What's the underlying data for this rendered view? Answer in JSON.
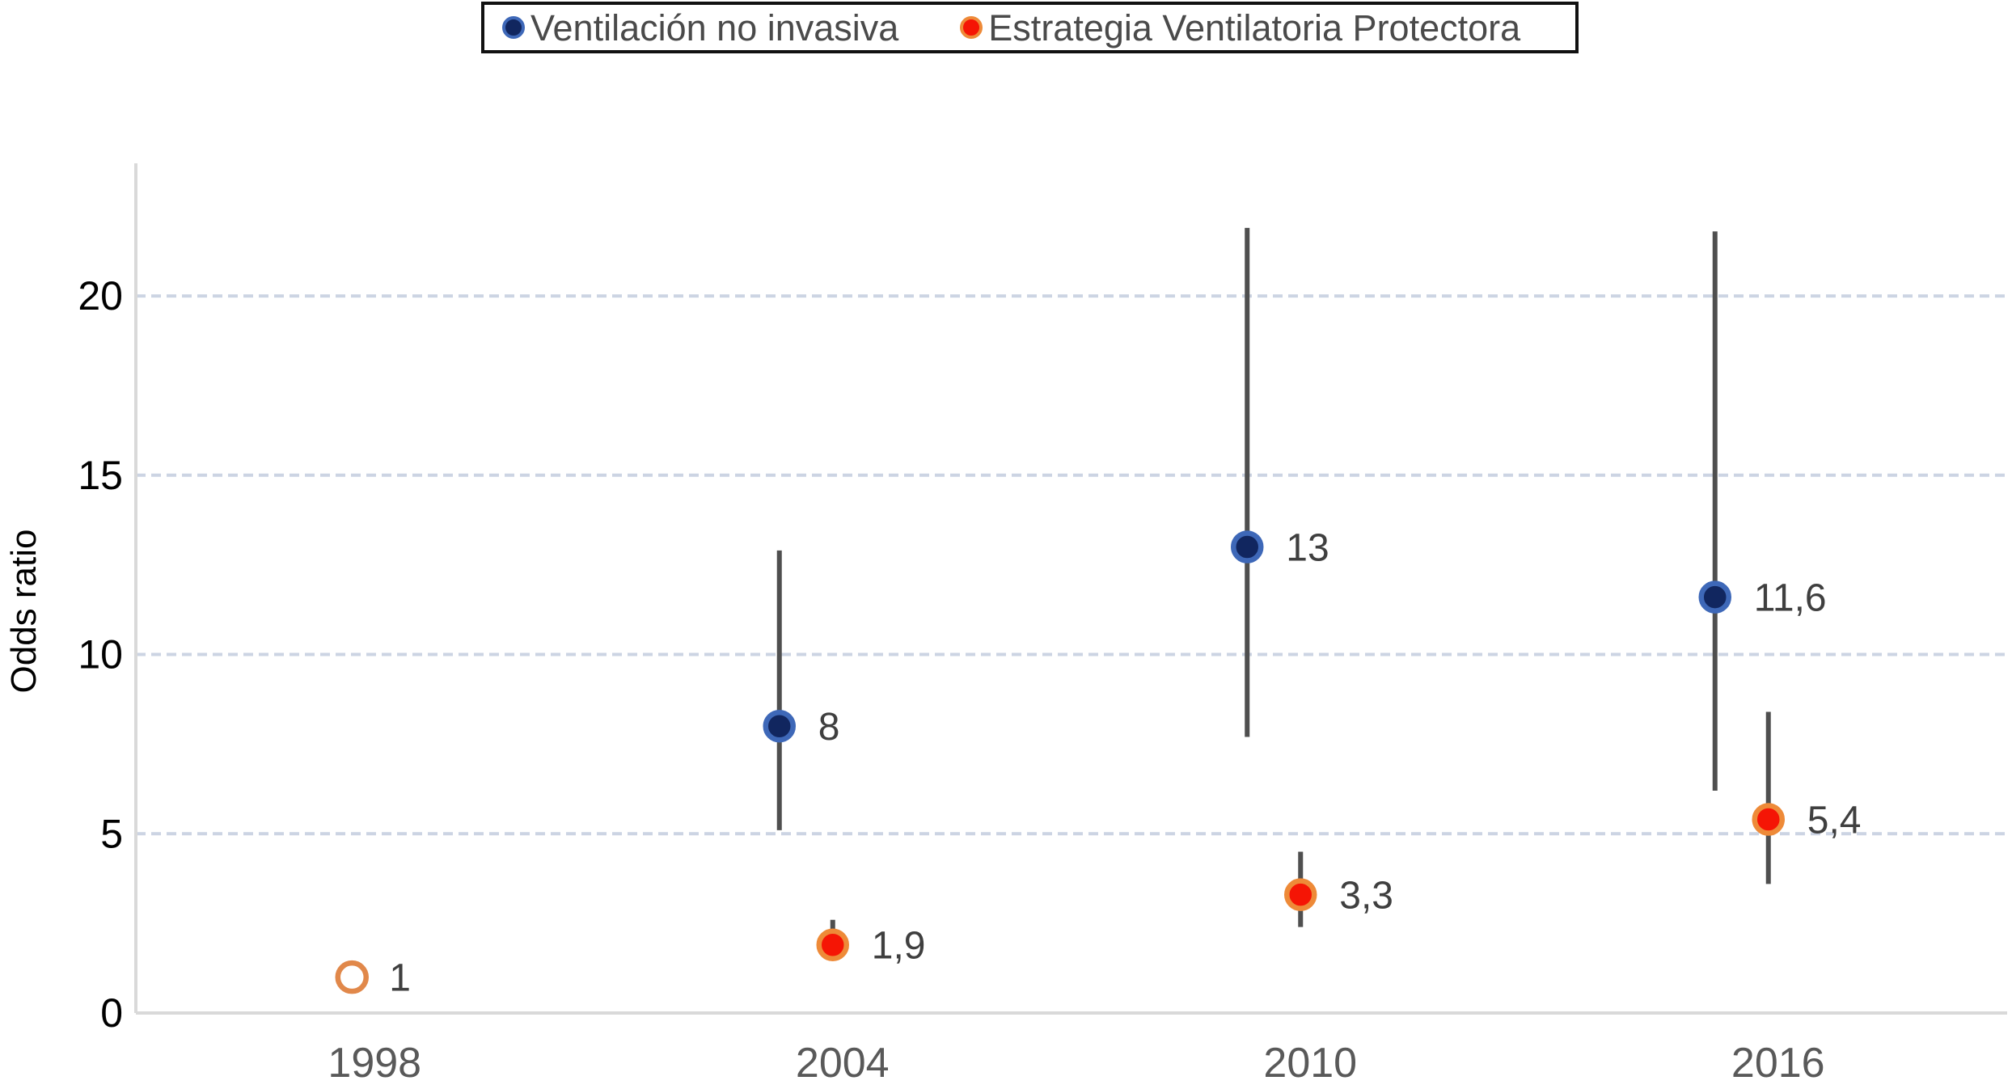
{
  "legend": {
    "items": [
      {
        "label": "Ventilación no invasiva",
        "fill": "#11265f",
        "ring": "#3e68b8"
      },
      {
        "label": "Estrategia Ventilatoria Protectora",
        "fill": "#f51505",
        "ring": "#ee8a38"
      }
    ]
  },
  "chart_data": {
    "type": "scatter",
    "title": "",
    "xlabel": "",
    "ylabel": "Odds ratio",
    "categories": [
      "1998",
      "2004",
      "2010",
      "2016"
    ],
    "ylim": [
      0,
      23.7
    ],
    "yticks": [
      0,
      5,
      10,
      15,
      20
    ],
    "grid": "horizontal dashed, on at 5/10/15/20",
    "legend_position": "top",
    "series": [
      {
        "name": "Ventilación no invasiva",
        "marker_fill": "#11265f",
        "marker_ring": "#3e68b8",
        "points": [
          {
            "year": "2004",
            "value": 8,
            "label": "8",
            "ci_low": 5.1,
            "ci_high": 12.9
          },
          {
            "year": "2010",
            "value": 13,
            "label": "13",
            "ci_low": 7.7,
            "ci_high": 21.9
          },
          {
            "year": "2016",
            "value": 11.6,
            "label": "11,6",
            "ci_low": 6.2,
            "ci_high": 21.8
          }
        ]
      },
      {
        "name": "Estrategia Ventilatoria Protectora",
        "marker_fill": "#f51505",
        "marker_ring": "#ee8a38",
        "points": [
          {
            "year": "2004",
            "value": 1.9,
            "label": "1,9",
            "ci_low": 1.5,
            "ci_high": 2.6
          },
          {
            "year": "2010",
            "value": 3.3,
            "label": "3,3",
            "ci_low": 2.4,
            "ci_high": 4.5
          },
          {
            "year": "2016",
            "value": 5.4,
            "label": "5,4",
            "ci_low": 3.6,
            "ci_high": 8.4
          }
        ]
      }
    ],
    "reference_point": {
      "year": "1998",
      "value": 1,
      "label": "1",
      "marker": "open-circle",
      "ring": "#e1884a"
    }
  },
  "style": {
    "errorbar_color": "#4f4f4f",
    "gridline_color": "#ccd4e3",
    "axis_color": "#d9d9d9",
    "ytick_color": "#000000",
    "xtick_color": "#595959",
    "value_label_color": "#3f3f3f"
  }
}
